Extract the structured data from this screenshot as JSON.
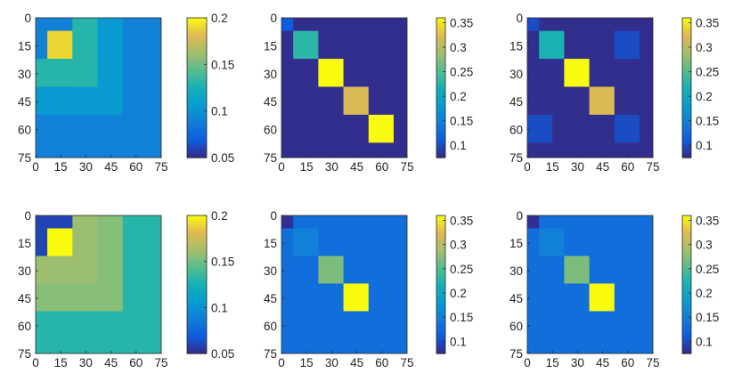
{
  "figure": {
    "description_rows": 2,
    "description_cols": 3
  },
  "colors": {
    "colormap": "parula",
    "text": "#262626"
  },
  "chart_data": [
    {
      "type": "heatmap",
      "title": "",
      "xlim": [
        0,
        75
      ],
      "ylim": [
        0,
        75
      ],
      "xticks": [
        "0",
        "15",
        "30",
        "45",
        "60",
        "75"
      ],
      "yticks": [
        "0",
        "15",
        "30",
        "45",
        "60",
        "75"
      ],
      "clim": [
        0.05,
        0.2
      ],
      "colorbar_ticks": [
        "0.2",
        "0.15",
        "0.1",
        "0.05"
      ],
      "colorbar_tick_values": [
        0.2,
        0.15,
        0.1,
        0.05
      ],
      "background": 0.09,
      "blocks": [
        {
          "x0": 0,
          "x1": 67,
          "y0": 0,
          "y1": 67,
          "value": 0.09
        },
        {
          "x0": 0,
          "x1": 52,
          "y0": 0,
          "y1": 52,
          "value": 0.105
        },
        {
          "x0": 0,
          "x1": 37,
          "y0": 0,
          "y1": 37,
          "value": 0.09
        },
        {
          "x0": 0,
          "x1": 22,
          "y0": 0,
          "y1": 22,
          "value": 0.09
        },
        {
          "x0": 0,
          "x1": 37,
          "y0": 22,
          "y1": 37,
          "value": 0.13
        },
        {
          "x0": 22,
          "x1": 37,
          "y0": 0,
          "y1": 37,
          "value": 0.13
        },
        {
          "x0": 7,
          "x1": 22,
          "y0": 7,
          "y1": 22,
          "value": 0.19
        }
      ]
    },
    {
      "type": "heatmap",
      "title": "",
      "xlim": [
        0,
        75
      ],
      "ylim": [
        0,
        75
      ],
      "xticks": [
        "0",
        "15",
        "30",
        "45",
        "60",
        "75"
      ],
      "yticks": [
        "0",
        "15",
        "30",
        "45",
        "60",
        "75"
      ],
      "clim": [
        0.075,
        0.36
      ],
      "colorbar_ticks": [
        "0.35",
        "0.3",
        "0.25",
        "0.2",
        "0.15",
        "0.1"
      ],
      "colorbar_tick_values": [
        0.35,
        0.3,
        0.25,
        0.2,
        0.15,
        0.1
      ],
      "background": 0.078,
      "blocks": [
        {
          "x0": 0,
          "x1": 7,
          "y0": 0,
          "y1": 7,
          "value": 0.11
        },
        {
          "x0": 7,
          "x1": 22,
          "y0": 7,
          "y1": 22,
          "value": 0.23
        },
        {
          "x0": 22,
          "x1": 37,
          "y0": 22,
          "y1": 37,
          "value": 0.36
        },
        {
          "x0": 37,
          "x1": 52,
          "y0": 37,
          "y1": 52,
          "value": 0.32
        },
        {
          "x0": 52,
          "x1": 67,
          "y0": 52,
          "y1": 67,
          "value": 0.36
        }
      ]
    },
    {
      "type": "heatmap",
      "title": "",
      "xlim": [
        0,
        75
      ],
      "ylim": [
        0,
        75
      ],
      "xticks": [
        "0",
        "15",
        "30",
        "45",
        "60",
        "75"
      ],
      "yticks": [
        "0",
        "15",
        "30",
        "45",
        "60",
        "75"
      ],
      "clim": [
        0.075,
        0.36
      ],
      "colorbar_ticks": [
        "0.35",
        "0.3",
        "0.25",
        "0.2",
        "0.15",
        "0.1"
      ],
      "colorbar_tick_values": [
        0.35,
        0.3,
        0.25,
        0.2,
        0.15,
        0.1
      ],
      "background": 0.078,
      "blocks": [
        {
          "x0": 0,
          "x1": 7,
          "y0": 0,
          "y1": 7,
          "value": 0.1
        },
        {
          "x0": 7,
          "x1": 22,
          "y0": 7,
          "y1": 22,
          "value": 0.22
        },
        {
          "x0": 22,
          "x1": 37,
          "y0": 22,
          "y1": 37,
          "value": 0.36
        },
        {
          "x0": 37,
          "x1": 52,
          "y0": 37,
          "y1": 52,
          "value": 0.32
        },
        {
          "x0": 52,
          "x1": 67,
          "y0": 7,
          "y1": 22,
          "value": 0.1
        },
        {
          "x0": 0,
          "x1": 15,
          "y0": 52,
          "y1": 67,
          "value": 0.1
        },
        {
          "x0": 52,
          "x1": 67,
          "y0": 52,
          "y1": 67,
          "value": 0.1
        }
      ]
    },
    {
      "type": "heatmap",
      "title": "",
      "xlim": [
        0,
        75
      ],
      "ylim": [
        0,
        75
      ],
      "xticks": [
        "0",
        "15",
        "30",
        "45",
        "60",
        "75"
      ],
      "yticks": [
        "0",
        "15",
        "30",
        "45",
        "60",
        "75"
      ],
      "clim": [
        0.05,
        0.2
      ],
      "colorbar_ticks": [
        "0.2",
        "0.15",
        "0.1",
        "0.05"
      ],
      "colorbar_tick_values": [
        0.2,
        0.15,
        0.1,
        0.05
      ],
      "background": 0.13,
      "blocks": [
        {
          "x0": 0,
          "x1": 52,
          "y0": 0,
          "y1": 52,
          "value": 0.155
        },
        {
          "x0": 0,
          "x1": 37,
          "y0": 0,
          "y1": 37,
          "value": 0.16
        },
        {
          "x0": 0,
          "x1": 22,
          "y0": 0,
          "y1": 7,
          "value": 0.06
        },
        {
          "x0": 0,
          "x1": 7,
          "y0": 0,
          "y1": 22,
          "value": 0.06
        },
        {
          "x0": 7,
          "x1": 22,
          "y0": 7,
          "y1": 22,
          "value": 0.2
        }
      ]
    },
    {
      "type": "heatmap",
      "title": "",
      "xlim": [
        0,
        75
      ],
      "ylim": [
        0,
        75
      ],
      "xticks": [
        "0",
        "15",
        "30",
        "45",
        "60",
        "75"
      ],
      "yticks": [
        "0",
        "15",
        "30",
        "45",
        "60",
        "75"
      ],
      "clim": [
        0.075,
        0.36
      ],
      "colorbar_ticks": [
        "0.35",
        "0.3",
        "0.25",
        "0.2",
        "0.15",
        "0.1"
      ],
      "colorbar_tick_values": [
        0.35,
        0.3,
        0.25,
        0.2,
        0.15,
        0.1
      ],
      "background": 0.13,
      "blocks": [
        {
          "x0": 0,
          "x1": 7,
          "y0": 0,
          "y1": 7,
          "value": 0.08
        },
        {
          "x0": 7,
          "x1": 22,
          "y0": 7,
          "y1": 22,
          "value": 0.15
        },
        {
          "x0": 22,
          "x1": 37,
          "y0": 22,
          "y1": 37,
          "value": 0.27
        },
        {
          "x0": 37,
          "x1": 52,
          "y0": 37,
          "y1": 52,
          "value": 0.36
        }
      ]
    },
    {
      "type": "heatmap",
      "title": "",
      "xlim": [
        0,
        75
      ],
      "ylim": [
        0,
        75
      ],
      "xticks": [
        "0",
        "15",
        "30",
        "45",
        "60",
        "75"
      ],
      "yticks": [
        "0",
        "15",
        "30",
        "45",
        "60",
        "75"
      ],
      "clim": [
        0.075,
        0.36
      ],
      "colorbar_ticks": [
        "0.35",
        "0.3",
        "0.25",
        "0.2",
        "0.15",
        "0.1"
      ],
      "colorbar_tick_values": [
        0.35,
        0.3,
        0.25,
        0.2,
        0.15,
        0.1
      ],
      "background": 0.13,
      "blocks": [
        {
          "x0": 0,
          "x1": 7,
          "y0": 0,
          "y1": 7,
          "value": 0.08
        },
        {
          "x0": 7,
          "x1": 22,
          "y0": 7,
          "y1": 22,
          "value": 0.15
        },
        {
          "x0": 22,
          "x1": 37,
          "y0": 22,
          "y1": 37,
          "value": 0.27
        },
        {
          "x0": 37,
          "x1": 52,
          "y0": 37,
          "y1": 52,
          "value": 0.36
        }
      ]
    }
  ]
}
